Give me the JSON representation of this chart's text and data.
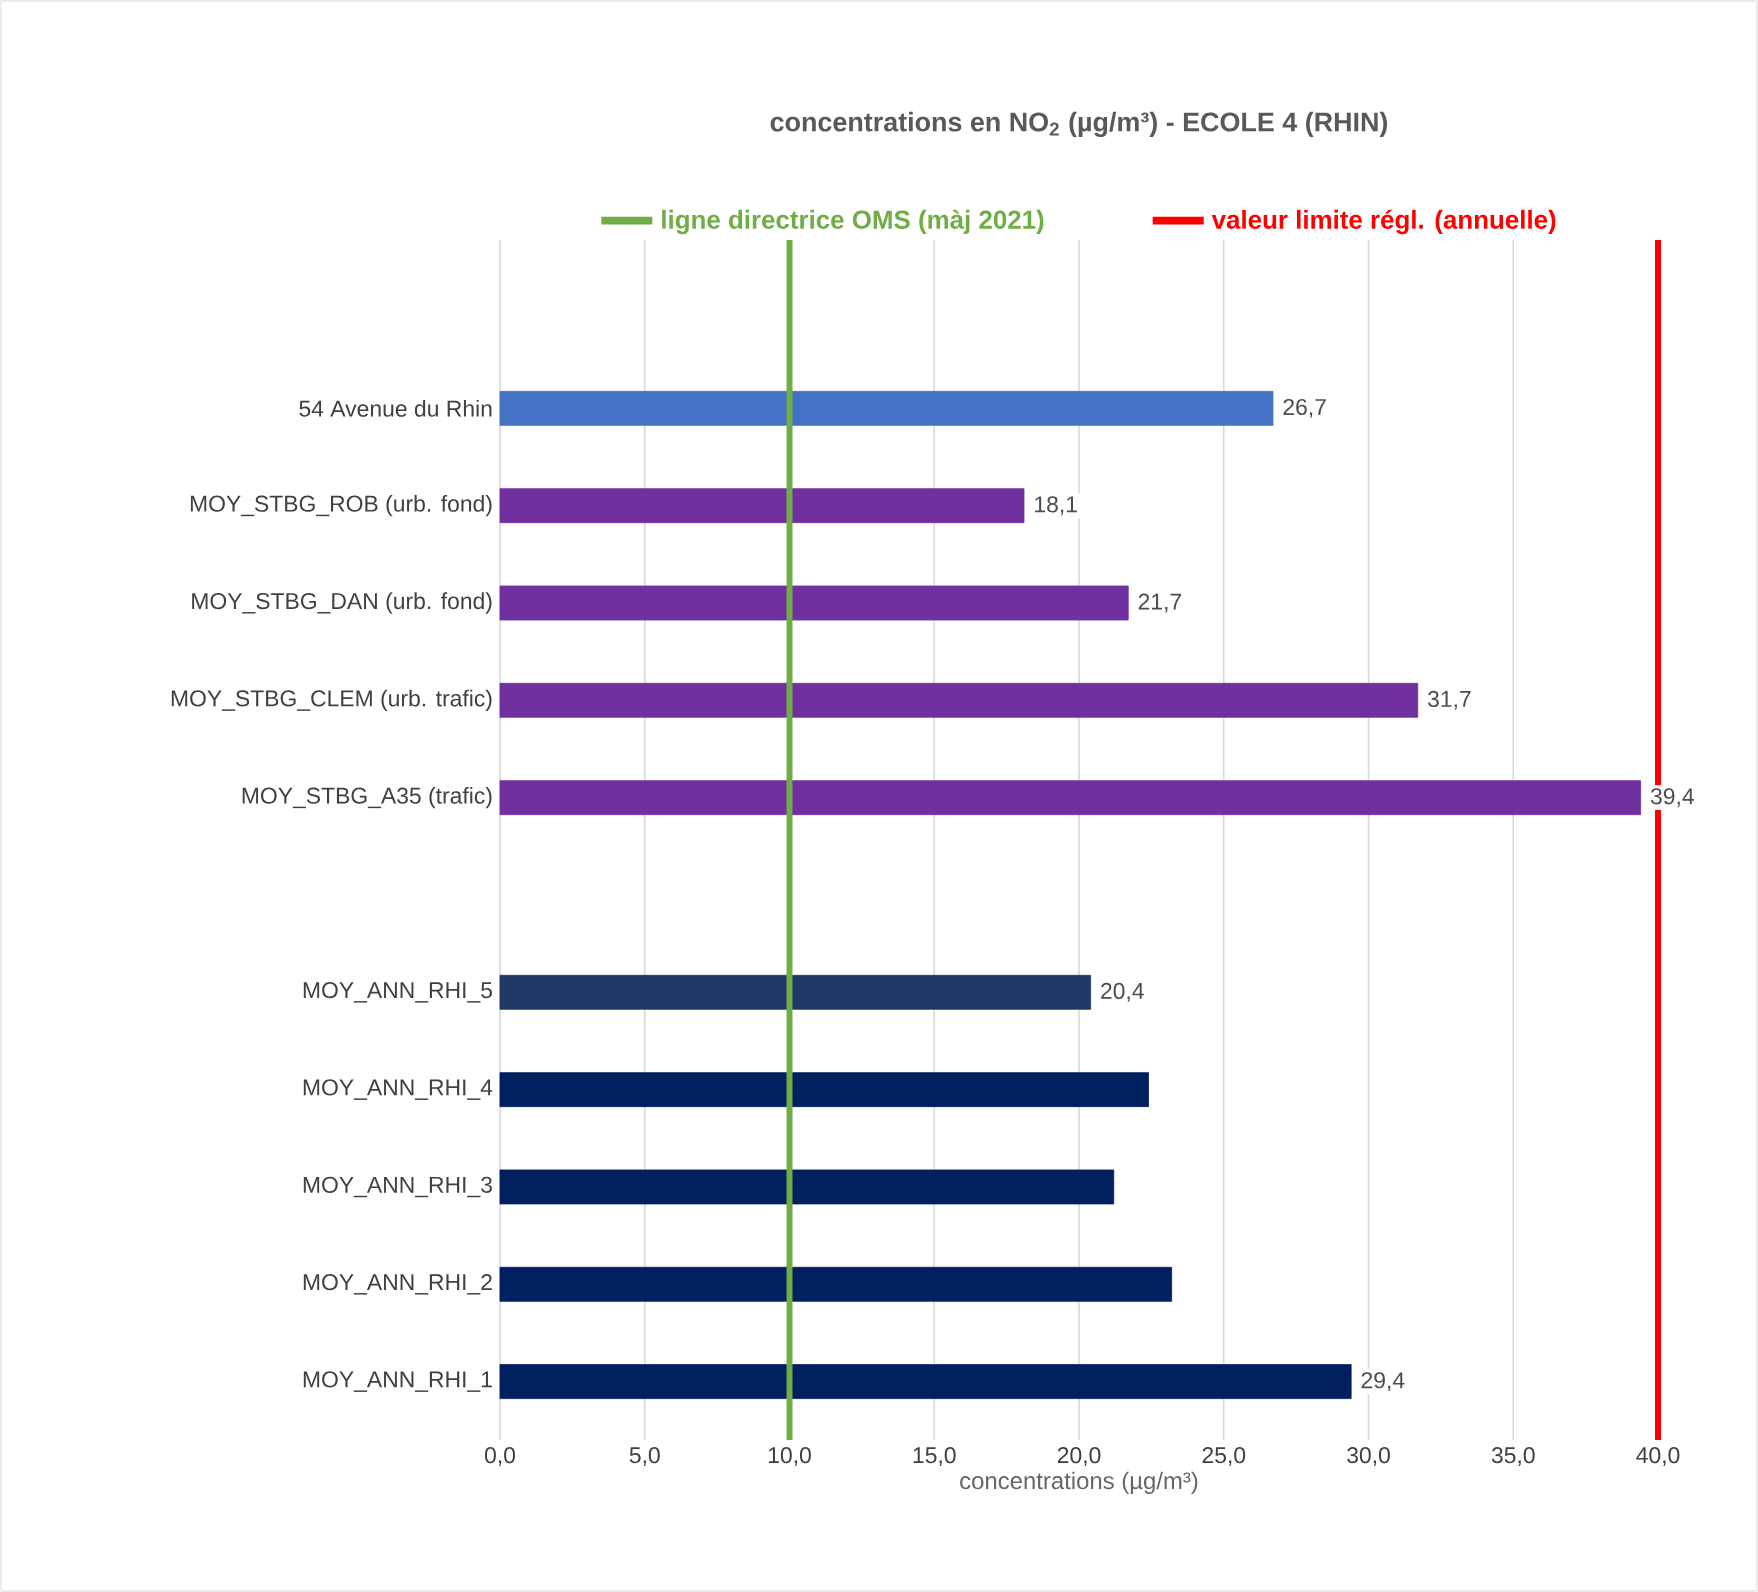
{
  "chart_data": {
    "type": "bar",
    "orientation": "horizontal",
    "title": "concentrations  en NO$_{2}$ (µg/m³) - ECOLE 4 (RHIN)",
    "xlabel": "concentrations (µg/m³)",
    "categories": [
      "54 Avenue du Rhin",
      "MOY_STBG_ROB (urb. fond)",
      "MOY_STBG_DAN (urb. fond)",
      "MOY_STBG_CLEM (urb. trafic)",
      "MOY_STBG_A35 (trafic)",
      null,
      "MOY_ANN_RHI_5",
      "MOY_ANN_RHI_4",
      "MOY_ANN_RHI_3",
      "MOY_ANN_RHI_2",
      "MOY_ANN_RHI_1"
    ],
    "values": [
      26.7,
      18.1,
      21.7,
      31.7,
      39.4,
      null,
      20.4,
      22.4,
      21.2,
      23.2,
      29.4
    ],
    "value_labels": [
      "26,7",
      "18,1",
      "21,7",
      "31,7",
      "39,4",
      null,
      "20,4",
      null,
      null,
      null,
      "29,4"
    ],
    "colors": [
      "#4472c4",
      "#7030a0",
      "#7030a0",
      "#7030a0",
      "#7030a0",
      "#002060",
      "#203864",
      "#002060",
      "#002060",
      "#002060",
      "#002060"
    ],
    "xlim": [
      0,
      40
    ],
    "xticks": [
      {
        "value": 0,
        "label": "0,0"
      },
      {
        "value": 5,
        "label": "5,0"
      },
      {
        "value": 10,
        "label": "10,0"
      },
      {
        "value": 15,
        "label": "15,0"
      },
      {
        "value": 20,
        "label": "20,0"
      },
      {
        "value": 25,
        "label": "25,0"
      },
      {
        "value": 30,
        "label": "30,0"
      },
      {
        "value": 35,
        "label": "35,0"
      },
      {
        "value": 40,
        "label": "40,0"
      }
    ],
    "grid": "x",
    "legend": "top",
    "ref_lines": [
      {
        "axis": "x",
        "value": 10,
        "label": "ligne directrice OMS (màj 2021)",
        "color": "#70ad47"
      },
      {
        "axis": "x",
        "value": 40,
        "label": "valeur limite régl. (annuelle)",
        "color": "#ff0000"
      }
    ]
  }
}
